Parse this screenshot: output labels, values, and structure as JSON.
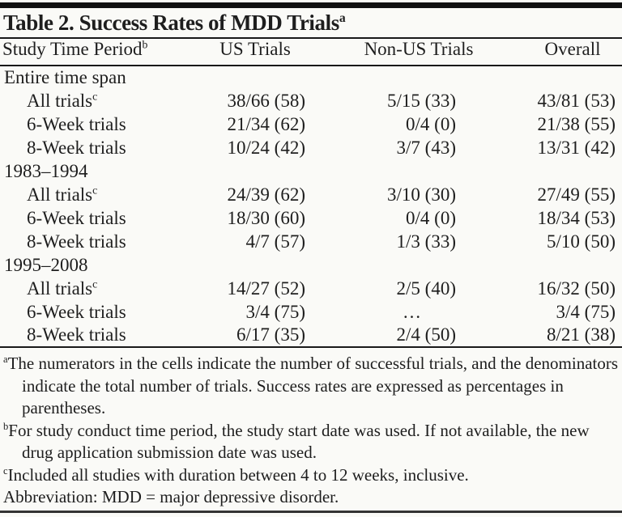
{
  "title": {
    "text": "Table 2. Success Rates of MDD Trials",
    "sup": "a"
  },
  "table": {
    "columns": [
      {
        "label": "Study Time Period",
        "sup": "b"
      },
      {
        "label": "US Trials",
        "sup": ""
      },
      {
        "label": "Non-US Trials",
        "sup": ""
      },
      {
        "label": "Overall",
        "sup": ""
      }
    ],
    "rows": [
      {
        "label": "Entire time span",
        "sup": "",
        "indent": 0,
        "cells": [
          "",
          "",
          ""
        ]
      },
      {
        "label": "All trials",
        "sup": "c",
        "indent": 1,
        "cells": [
          "38/66 (58)",
          "5/15 (33)",
          "43/81 (53)"
        ]
      },
      {
        "label": "6-Week trials",
        "sup": "",
        "indent": 1,
        "cells": [
          "21/34 (62)",
          "0/4 (0)",
          "21/38 (55)"
        ]
      },
      {
        "label": "8-Week trials",
        "sup": "",
        "indent": 1,
        "cells": [
          "10/24 (42)",
          "3/7 (43)",
          "13/31 (42)"
        ]
      },
      {
        "label": "1983–1994",
        "sup": "",
        "indent": 0,
        "cells": [
          "",
          "",
          ""
        ]
      },
      {
        "label": "All trials",
        "sup": "c",
        "indent": 1,
        "cells": [
          "24/39 (62)",
          "3/10 (30)",
          "27/49 (55)"
        ]
      },
      {
        "label": "6-Week trials",
        "sup": "",
        "indent": 1,
        "cells": [
          "18/30 (60)",
          "0/4 (0)",
          "18/34 (53)"
        ]
      },
      {
        "label": "8-Week trials",
        "sup": "",
        "indent": 1,
        "cells": [
          "4/7 (57)",
          "1/3 (33)",
          "5/10 (50)"
        ]
      },
      {
        "label": "1995–2008",
        "sup": "",
        "indent": 0,
        "cells": [
          "",
          "",
          ""
        ]
      },
      {
        "label": "All trials",
        "sup": "c",
        "indent": 1,
        "cells": [
          "14/27 (52)",
          "2/5 (40)",
          "16/32 (50)"
        ]
      },
      {
        "label": "6-Week trials",
        "sup": "",
        "indent": 1,
        "cells": [
          "3/4 (75)",
          "…",
          "3/4 (75)"
        ]
      },
      {
        "label": "8-Week trials",
        "sup": "",
        "indent": 1,
        "cells": [
          "6/17 (35)",
          "2/4 (50)",
          "8/21 (38)"
        ]
      }
    ]
  },
  "footnotes": [
    {
      "sup": "a",
      "text": "The numerators in the cells indicate the number of successful trials, and the denominators indicate the total number of trials. Success rates are expressed as percentages in parentheses."
    },
    {
      "sup": "b",
      "text": "For study conduct time period, the study start date was used. If not available, the new drug application submission date was used."
    },
    {
      "sup": "c",
      "text": "Included all studies with duration between 4 to 12 weeks, inclusive."
    },
    {
      "sup": "",
      "text": "Abbreviation: MDD = major depressive disorder."
    }
  ],
  "colors": {
    "background": "#fafaf7",
    "ink": "#1e1e1e",
    "rule": "#191919",
    "top_bar": "#111111",
    "bottom_rule": "#333333"
  }
}
